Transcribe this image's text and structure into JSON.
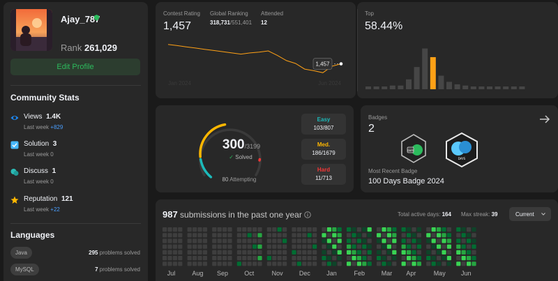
{
  "profile": {
    "username": "Ajay_787",
    "rank_label": "Rank",
    "rank": "261,029",
    "edit_label": "Edit Profile"
  },
  "community": {
    "title": "Community Stats",
    "items": [
      {
        "label": "Views",
        "value": "1.4K",
        "sub_label": "Last week",
        "sub_value": "+829",
        "icon": "eye-icon",
        "color": "#1d87f0"
      },
      {
        "label": "Solution",
        "value": "3",
        "sub_label": "Last week",
        "sub_value": "0",
        "icon": "solution-checkbox-icon",
        "color": "#47b7ff"
      },
      {
        "label": "Discuss",
        "value": "1",
        "sub_label": "Last week",
        "sub_value": "0",
        "icon": "discuss-icon",
        "color": "#2cbbb6"
      },
      {
        "label": "Reputation",
        "value": "121",
        "sub_label": "Last week",
        "sub_value": "+22",
        "icon": "star-icon",
        "color": "#ffb800"
      }
    ]
  },
  "languages": {
    "title": "Languages",
    "items": [
      {
        "name": "Java",
        "count": "295",
        "suffix": "problems solved"
      },
      {
        "name": "MySQL",
        "count": "7",
        "suffix": "problems solved"
      }
    ]
  },
  "rating": {
    "contest_rating_label": "Contest Rating",
    "contest_rating": "1,457",
    "global_label": "Global Ranking",
    "global_rank": "318,731",
    "global_total": "/551,401",
    "attended_label": "Attended",
    "attended": "12",
    "tooltip": "1,457",
    "x_start": "Jan 2024",
    "x_end": "Jun 2024"
  },
  "top": {
    "label": "Top",
    "value": "58.44%"
  },
  "solved": {
    "solved": "300",
    "total": "/3199",
    "solved_label": "Solved",
    "attempting_count": "80",
    "attempting_label": "Attempting",
    "easy_label": "Easy",
    "easy": "103/807",
    "easy_color": "#1cbaba",
    "medium_label": "Med.",
    "medium": "186/1679",
    "medium_color": "#ffb700",
    "hard_label": "Hard",
    "hard": "11/713",
    "hard_color": "#f63737"
  },
  "badges": {
    "label": "Badges",
    "count": "2",
    "recent_label": "Most Recent Badge",
    "recent_name": "100 Days Badge 2024"
  },
  "submissions": {
    "count": "987",
    "label": "submissions in the past one year",
    "active_label": "Total active days:",
    "active_days": "164",
    "streak_label": "Max streak:",
    "max_streak": "39",
    "range_selected": "Current",
    "months": [
      "Jul",
      "Aug",
      "Sep",
      "Oct",
      "Nov",
      "Dec",
      "Jan",
      "Feb",
      "Mar",
      "Apr",
      "May",
      "Jun"
    ]
  },
  "chart_data": [
    {
      "type": "line",
      "title": "",
      "x_start": "Jan 2024",
      "x_end": "Jun 2024",
      "values": [
        1505,
        1502,
        1499,
        1496,
        1493,
        1490,
        1487,
        1484,
        1481,
        1484,
        1486,
        1489,
        1478,
        1465,
        1458,
        1444,
        1440,
        1435,
        1451,
        1457
      ]
    },
    {
      "type": "bar",
      "title": "",
      "highlight_label": "58.44%",
      "highlight_index": 8,
      "values": [
        2,
        2,
        2,
        3,
        3,
        8,
        18,
        33,
        26,
        11,
        6,
        4,
        3,
        2,
        2,
        2,
        2,
        2,
        2,
        2
      ]
    }
  ]
}
